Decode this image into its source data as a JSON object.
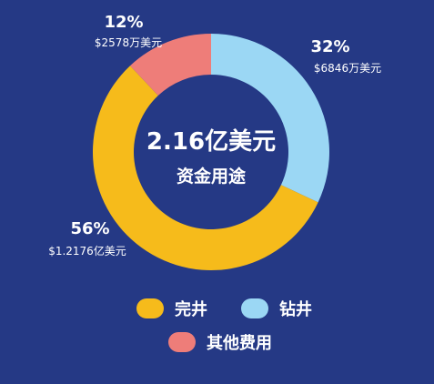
{
  "chart_data": {
    "type": "pie",
    "center_value": "2.16亿美元",
    "center_label": "资金用途",
    "categories": [
      "钻井",
      "完井",
      "其他费用"
    ],
    "percent_labels": [
      "32%",
      "56%",
      "12%"
    ],
    "amount_labels": [
      "$6846万美元",
      "$1.2176亿美元",
      "$2578万美元"
    ],
    "values": [
      32,
      56,
      12
    ],
    "colors": [
      "#9bd7f4",
      "#f6bb1b",
      "#ee7d79"
    ],
    "legend": {
      "placement": "bottom",
      "items": [
        {
          "label": "完井",
          "color": "#f6bb1b"
        },
        {
          "label": "钻井",
          "color": "#9bd7f4"
        },
        {
          "label": "其他费用",
          "color": "#ee7d79"
        }
      ]
    }
  },
  "colors": {
    "background": "#253985",
    "text": "#ffffff"
  }
}
